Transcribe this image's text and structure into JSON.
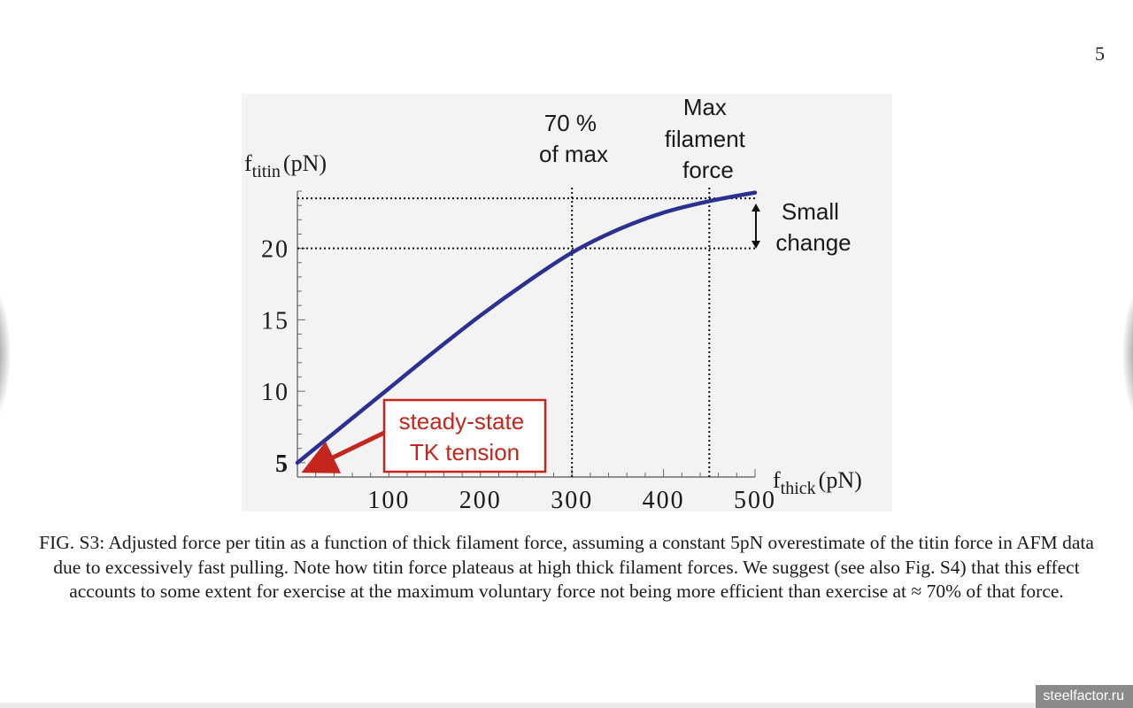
{
  "page_number": "5",
  "chart_data": {
    "type": "line",
    "y_axis_label": {
      "base": "f",
      "sub": "titin",
      "unit": "(pN)"
    },
    "x_axis_label": {
      "base": "f",
      "sub": "thick",
      "unit": "(pN)"
    },
    "xlim": [
      0,
      500
    ],
    "ylim": [
      4,
      24
    ],
    "x_ticks": [
      100,
      200,
      300,
      400,
      500
    ],
    "y_ticks": [
      5,
      10,
      15,
      20
    ],
    "series": [
      {
        "color": "#2b3190",
        "x": [
          0,
          50,
          100,
          150,
          200,
          250,
          300,
          350,
          400,
          450,
          500
        ],
        "y": [
          5.0,
          7.6,
          10.2,
          12.8,
          15.3,
          17.6,
          19.7,
          21.3,
          22.5,
          23.3,
          23.9
        ]
      }
    ],
    "reference_lines": {
      "vertical": [
        300,
        450
      ],
      "horizontal": [
        20,
        23.5
      ]
    },
    "annotations": {
      "seventy_percent": [
        "70 %",
        "of max"
      ],
      "max_force": [
        "Max",
        "filament",
        "force"
      ],
      "small_change": [
        "Small",
        "change"
      ],
      "steady_state": [
        "steady-state",
        "TK tension"
      ]
    },
    "annotation_color": "#c4261d",
    "grid": false
  },
  "caption": "FIG. S3: Adjusted force per titin as a function of thick filament force, assuming a constant 5pN overestimate of the titin force in AFM data due to excessively fast pulling. Note how titin force plateaus at high thick filament forces. We suggest (see also Fig. S4) that this effect accounts to some extent for exercise at the maximum voluntary force not being more efficient than exercise at ≈ 70% of that force.",
  "watermark": "steelfactor.ru"
}
